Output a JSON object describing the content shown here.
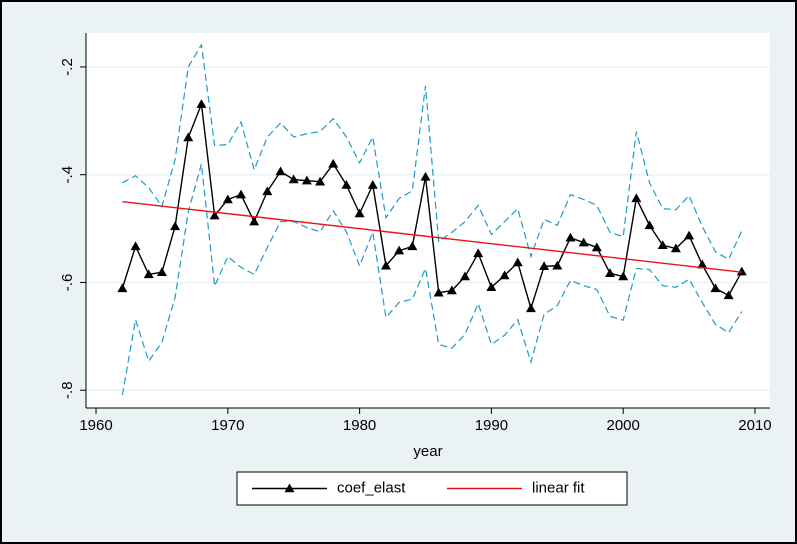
{
  "chart_data": {
    "type": "line",
    "x_label": "year",
    "xlim": [
      1959.24,
      2011.14
    ],
    "xticks": [
      1960,
      1970,
      1980,
      1990,
      2000,
      2010
    ],
    "ylim": [
      -0.833,
      -0.137
    ],
    "yticks": [
      {
        "value": -0.8,
        "label": "-.8"
      },
      {
        "value": -0.6,
        "label": "-.6"
      },
      {
        "value": -0.4,
        "label": "-.4"
      },
      {
        "value": -0.2,
        "label": "-.2"
      }
    ],
    "grid": true,
    "legend": "bottom",
    "x": [
      1962,
      1963,
      1964,
      1965,
      1966,
      1967,
      1968,
      1969,
      1970,
      1971,
      1972,
      1973,
      1974,
      1975,
      1976,
      1977,
      1978,
      1979,
      1980,
      1981,
      1982,
      1983,
      1984,
      1985,
      1986,
      1987,
      1988,
      1989,
      1990,
      1991,
      1992,
      1993,
      1994,
      1995,
      1996,
      1997,
      1998,
      1999,
      2000,
      2001,
      2002,
      2003,
      2004,
      2005,
      2006,
      2007,
      2008,
      2009
    ],
    "series": [
      {
        "name": "coef_elast",
        "color": "#000000",
        "marker": "triangle",
        "values": [
          -0.611,
          -0.533,
          -0.585,
          -0.581,
          -0.496,
          -0.331,
          -0.269,
          -0.476,
          -0.446,
          -0.437,
          -0.487,
          -0.431,
          -0.394,
          -0.409,
          -0.411,
          -0.413,
          -0.38,
          -0.419,
          -0.472,
          -0.419,
          -0.569,
          -0.541,
          -0.533,
          -0.404,
          -0.619,
          -0.615,
          -0.589,
          -0.546,
          -0.609,
          -0.587,
          -0.563,
          -0.648,
          -0.57,
          -0.569,
          -0.517,
          -0.526,
          -0.535,
          -0.583,
          -0.589,
          -0.444,
          -0.494,
          -0.531,
          -0.537,
          -0.513,
          -0.567,
          -0.611,
          -0.624,
          -0.58
        ]
      },
      {
        "name": "linear fit",
        "color": "#e8141c",
        "x": [
          1962,
          2009
        ],
        "values": [
          -0.45,
          -0.581
        ]
      },
      {
        "color": "#1f9bc6",
        "dash": true,
        "values": [
          -0.415,
          -0.402,
          -0.424,
          -0.459,
          -0.372,
          -0.2,
          -0.159,
          -0.346,
          -0.344,
          -0.302,
          -0.391,
          -0.33,
          -0.304,
          -0.33,
          -0.324,
          -0.32,
          -0.296,
          -0.33,
          -0.378,
          -0.33,
          -0.48,
          -0.444,
          -0.43,
          -0.235,
          -0.524,
          -0.507,
          -0.487,
          -0.457,
          -0.511,
          -0.487,
          -0.463,
          -0.552,
          -0.483,
          -0.494,
          -0.437,
          -0.446,
          -0.457,
          -0.507,
          -0.515,
          -0.32,
          -0.415,
          -0.463,
          -0.465,
          -0.439,
          -0.496,
          -0.543,
          -0.557,
          -0.504
        ]
      },
      {
        "color": "#1f9bc6",
        "dash": true,
        "values": [
          -0.809,
          -0.669,
          -0.746,
          -0.711,
          -0.628,
          -0.469,
          -0.38,
          -0.607,
          -0.552,
          -0.572,
          -0.585,
          -0.535,
          -0.487,
          -0.487,
          -0.498,
          -0.506,
          -0.467,
          -0.506,
          -0.569,
          -0.507,
          -0.665,
          -0.637,
          -0.631,
          -0.574,
          -0.715,
          -0.722,
          -0.696,
          -0.639,
          -0.715,
          -0.698,
          -0.669,
          -0.748,
          -0.659,
          -0.643,
          -0.596,
          -0.606,
          -0.613,
          -0.663,
          -0.67,
          -0.574,
          -0.576,
          -0.606,
          -0.609,
          -0.594,
          -0.637,
          -0.678,
          -0.693,
          -0.654
        ]
      }
    ]
  }
}
